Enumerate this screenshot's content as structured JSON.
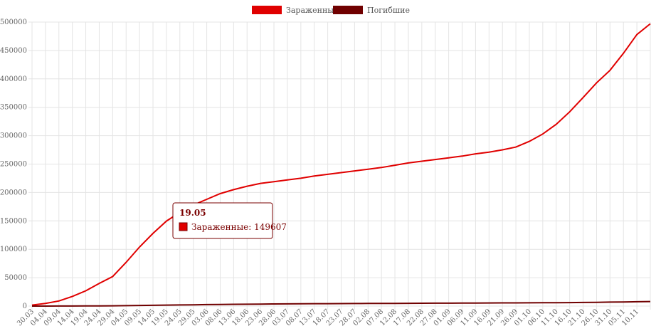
{
  "chart_data": {
    "type": "line",
    "categories": [
      "30.03",
      "04.04",
      "09.04",
      "14.04",
      "19.04",
      "24.04",
      "29.04",
      "04.05",
      "09.05",
      "14.05",
      "19.05",
      "24.05",
      "29.05",
      "03.06",
      "08.06",
      "13.06",
      "18.06",
      "23.06",
      "28.06",
      "03.07",
      "08.07",
      "13.07",
      "18.07",
      "23.07",
      "28.07",
      "02.08",
      "07.08",
      "12.08",
      "17.08",
      "22.08",
      "27.08",
      "01.09",
      "06.09",
      "11.09",
      "16.09",
      "21.09",
      "26.09",
      "01.10",
      "06.10",
      "11.10",
      "16.10",
      "21.10",
      "26.10",
      "31.10",
      "05.11",
      "10.11",
      null
    ],
    "series": [
      {
        "name": "Зараженные",
        "color": "#e00000",
        "values": [
          1800,
          4700,
          9000,
          17000,
          27000,
          40000,
          52000,
          77000,
          104000,
          128000,
          149607,
          165000,
          178000,
          188000,
          198000,
          205000,
          211000,
          216000,
          219000,
          222000,
          225000,
          229000,
          232000,
          235000,
          238000,
          241000,
          244000,
          248000,
          252000,
          255000,
          258000,
          261000,
          264000,
          268000,
          271000,
          275000,
          280000,
          290000,
          303000,
          320000,
          342000,
          367000,
          393000,
          415000,
          445000,
          478000,
          497000
        ]
      },
      {
        "name": "Погибшие",
        "color": "#700000",
        "values": [
          20,
          50,
          90,
          150,
          250,
          400,
          550,
          800,
          1100,
          1400,
          1700,
          2000,
          2300,
          2600,
          2900,
          3100,
          3300,
          3500,
          3700,
          3900,
          4000,
          4200,
          4300,
          4400,
          4500,
          4600,
          4700,
          4800,
          4900,
          5000,
          5100,
          5200,
          5300,
          5400,
          5500,
          5600,
          5700,
          5800,
          5900,
          6000,
          6200,
          6400,
          6700,
          7000,
          7300,
          7700,
          8000
        ]
      }
    ],
    "ylim": [
      0,
      500000
    ],
    "yticks": [
      0,
      50000,
      100000,
      150000,
      200000,
      250000,
      300000,
      350000,
      400000,
      450000,
      500000
    ],
    "grid": true,
    "tooltip": {
      "title": "19.05",
      "text": "Зараженные: 149607"
    }
  }
}
